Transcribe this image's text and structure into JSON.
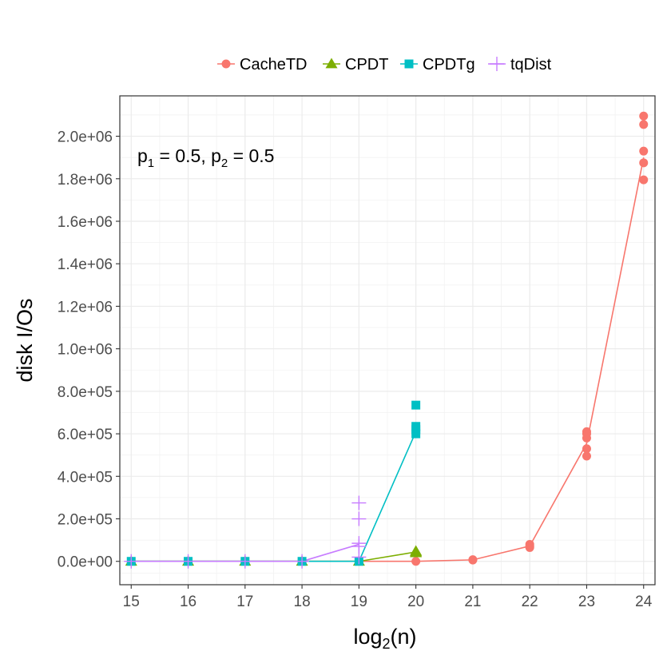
{
  "chart_data": {
    "type": "line",
    "title": "",
    "xlabel": {
      "base": "log",
      "sub": "2",
      "rest": "(n)"
    },
    "ylabel": "disk I/Os",
    "xlim": [
      14.8,
      24.2
    ],
    "ylim": [
      -110000,
      2190000
    ],
    "x_ticks": [
      15,
      16,
      17,
      18,
      19,
      20,
      21,
      22,
      23,
      24
    ],
    "x_tick_labels": [
      "15",
      "16",
      "17",
      "18",
      "19",
      "20",
      "21",
      "22",
      "23",
      "24"
    ],
    "y_ticks": [
      0,
      200000,
      400000,
      600000,
      800000,
      1000000,
      1200000,
      1400000,
      1600000,
      1800000,
      2000000
    ],
    "y_tick_labels": [
      "0.0e+00",
      "2.0e+05",
      "4.0e+05",
      "6.0e+05",
      "8.0e+05",
      "1.0e+06",
      "1.2e+06",
      "1.4e+06",
      "1.6e+06",
      "1.8e+06",
      "2.0e+06"
    ],
    "grid": true,
    "legend_position": "top",
    "annotation": {
      "p1": "p",
      "p1_sub": "1",
      "p1_val": " = 0.5, ",
      "p2": "p",
      "p2_sub": "2",
      "p2_val": " = 0.5"
    },
    "series": [
      {
        "name": "CacheTD",
        "color": "#F8766D",
        "shape": "circle",
        "x": [
          15,
          16,
          17,
          18,
          19,
          20,
          21,
          22,
          23,
          24
        ],
        "line": [
          0,
          0,
          0,
          0,
          0,
          0,
          7000,
          72000,
          555000,
          1900000
        ],
        "points": [
          [
            20,
            0
          ],
          [
            21,
            6000
          ],
          [
            21,
            8000
          ],
          [
            22,
            65000
          ],
          [
            22,
            72000
          ],
          [
            22,
            80000
          ],
          [
            23,
            495000
          ],
          [
            23,
            530000
          ],
          [
            23,
            580000
          ],
          [
            23,
            600000
          ],
          [
            23,
            610000
          ],
          [
            24,
            1795000
          ],
          [
            24,
            1875000
          ],
          [
            24,
            1930000
          ],
          [
            24,
            2055000
          ],
          [
            24,
            2095000
          ]
        ]
      },
      {
        "name": "CPDT",
        "color": "#7CAE00",
        "shape": "triangle",
        "x": [
          15,
          16,
          17,
          18,
          19,
          20
        ],
        "line": [
          0,
          0,
          0,
          0,
          0,
          44000
        ],
        "points": [
          [
            15,
            0
          ],
          [
            16,
            0
          ],
          [
            17,
            0
          ],
          [
            18,
            0
          ],
          [
            19,
            0
          ],
          [
            20,
            40000
          ],
          [
            20,
            44000
          ],
          [
            20,
            48000
          ]
        ]
      },
      {
        "name": "CPDTg",
        "color": "#00BFC4",
        "shape": "square",
        "x": [
          15,
          16,
          17,
          18,
          19,
          20
        ],
        "line": [
          0,
          0,
          0,
          0,
          0,
          610000
        ],
        "points": [
          [
            15,
            0
          ],
          [
            16,
            0
          ],
          [
            17,
            0
          ],
          [
            18,
            0
          ],
          [
            19,
            0
          ],
          [
            20,
            600000
          ],
          [
            20,
            620000
          ],
          [
            20,
            635000
          ],
          [
            20,
            735000
          ]
        ]
      },
      {
        "name": "tqDist",
        "color": "#C77CFF",
        "shape": "plus",
        "x": [
          15,
          16,
          17,
          18,
          19
        ],
        "line": [
          0,
          0,
          0,
          0,
          80000
        ],
        "points": [
          [
            15,
            0
          ],
          [
            16,
            0
          ],
          [
            17,
            0
          ],
          [
            18,
            0
          ],
          [
            19,
            20000
          ],
          [
            19,
            70000
          ],
          [
            19,
            85000
          ],
          [
            19,
            200000
          ],
          [
            19,
            275000
          ]
        ]
      }
    ]
  }
}
